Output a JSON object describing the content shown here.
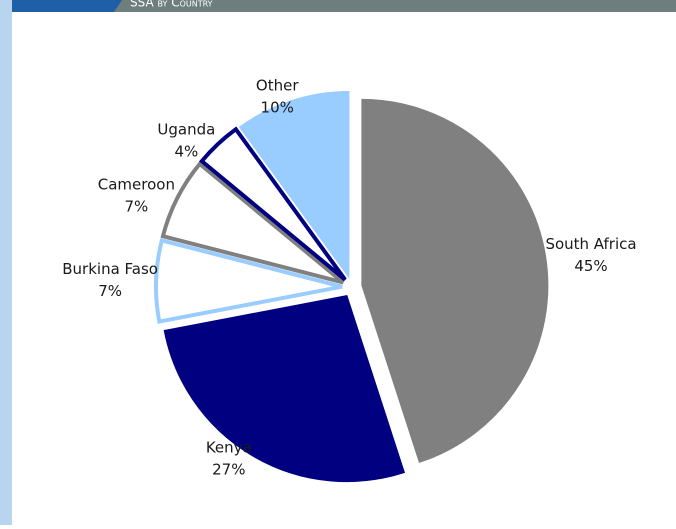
{
  "chart_data": {
    "type": "pie",
    "title": "SSA by Country",
    "categories": [
      "South Africa",
      "Kenya",
      "Burkina Faso",
      "Cameroon",
      "Uganda",
      "Other"
    ],
    "values": [
      45,
      27,
      7,
      7,
      4,
      10
    ],
    "value_labels": [
      "45%",
      "27%",
      "7%",
      "7%",
      "4%",
      "10%"
    ],
    "fills": [
      "#808080",
      "#000080",
      "#ffffff",
      "#ffffff",
      "#ffffff",
      "#99ccff"
    ],
    "strokes": [
      "#808080",
      "#000080",
      "#99ccff",
      "#808080",
      "#000080",
      "#99ccff"
    ]
  }
}
